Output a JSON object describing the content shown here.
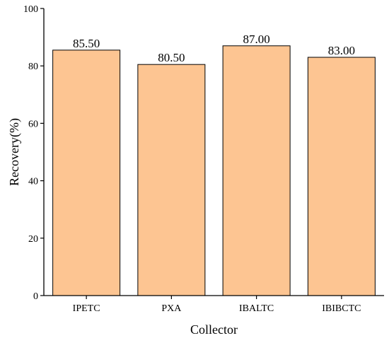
{
  "chart_data": {
    "type": "bar",
    "categories": [
      "IPETC",
      "PXA",
      "IBALTC",
      "IBIBCTC"
    ],
    "values": [
      85.5,
      80.5,
      87.0,
      83.0
    ],
    "value_labels": [
      "85.50",
      "80.50",
      "87.00",
      "83.00"
    ],
    "xlabel": "Collector",
    "ylabel": "Recovery(%)",
    "ylim": [
      0,
      100
    ],
    "yticks": [
      0,
      20,
      40,
      60,
      80,
      100
    ],
    "bar_color": "#FDC592",
    "bar_edge_color": "#000000",
    "grid": false,
    "legend": "none"
  }
}
